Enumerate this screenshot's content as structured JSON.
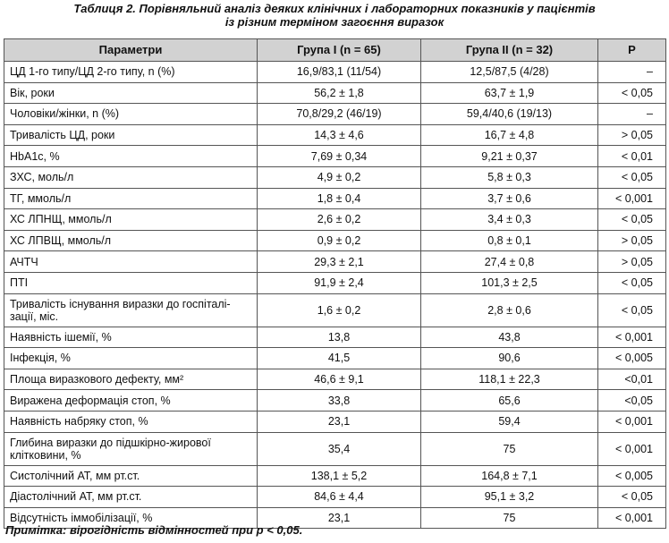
{
  "caption": {
    "line1": "Таблиця 2. Порівняльний аналіз деяких клінічних і лабораторних показників у пацієнтів",
    "line2": "із різним терміном загоєння виразок"
  },
  "table": {
    "headers": [
      "Параметри",
      "Група І (n = 65)",
      "Група ІІ (n = 32)",
      "Р"
    ],
    "rows": [
      {
        "param": "ЦД 1-го типу/ЦД 2-го типу, n (%)",
        "g1": "16,9/83,1 (11/54)",
        "g2": "12,5/87,5 (4/28)",
        "p": "–"
      },
      {
        "param": "Вік, роки",
        "g1": "56,2 ± 1,8",
        "g2": "63,7 ± 1,9",
        "p": "< 0,05"
      },
      {
        "param": "Чоловіки/жінки, n (%)",
        "g1": "70,8/29,2 (46/19)",
        "g2": "59,4/40,6 (19/13)",
        "p": "–"
      },
      {
        "param": "Тривалість ЦД, роки",
        "g1": "14,3 ± 4,6",
        "g2": "16,7 ± 4,8",
        "p": "> 0,05"
      },
      {
        "param": "HbA1c,  %",
        "g1": "7,69 ± 0,34",
        "g2": "9,21 ± 0,37",
        "p": "< 0,01"
      },
      {
        "param": "ЗХС, моль/л",
        "g1": "4,9 ± 0,2",
        "g2": "5,8 ± 0,3",
        "p": "< 0,05"
      },
      {
        "param": "ТГ, ммоль/л",
        "g1": "1,8 ± 0,4",
        "g2": "3,7 ± 0,6",
        "p": "< 0,001"
      },
      {
        "param": "ХС ЛПНЩ, ммоль/л",
        "g1": "2,6 ± 0,2",
        "g2": "3,4 ± 0,3",
        "p": "< 0,05"
      },
      {
        "param": "ХС ЛПВЩ, ммоль/л",
        "g1": "0,9 ± 0,2",
        "g2": "0,8 ± 0,1",
        "p": "> 0,05"
      },
      {
        "param": "АЧТЧ",
        "g1": "29,3 ± 2,1",
        "g2": "27,4 ± 0,8",
        "p": "> 0,05"
      },
      {
        "param": "ПТІ",
        "g1": "91,9 ± 2,4",
        "g2": "101,3 ± 2,5",
        "p": "< 0,05"
      },
      {
        "param": "Тривалість існування виразки до госпіталі-зації, міс.",
        "g1": "1,6 ± 0,2",
        "g2": "2,8 ± 0,6",
        "p": "< 0,05",
        "tall": true
      },
      {
        "param": "Наявність ішемії, %",
        "g1": "13,8",
        "g2": "43,8",
        "p": "< 0,001"
      },
      {
        "param": "Інфекція, %",
        "g1": "41,5",
        "g2": "90,6",
        "p": "< 0,005"
      },
      {
        "param": "Площа виразкового дефекту, мм²",
        "g1": "46,6 ± 9,1",
        "g2": "118,1 ± 22,3",
        "p": "<0,01"
      },
      {
        "param": "Виражена деформація стоп, %",
        "g1": "33,8",
        "g2": "65,6",
        "p": "<0,05"
      },
      {
        "param": "Наявність набряку стоп, %",
        "g1": "23,1",
        "g2": "59,4",
        "p": "< 0,001"
      },
      {
        "param": "Глибина виразки до підшкірно-жирової клітковини, %",
        "g1": "35,4",
        "g2": "75",
        "p": "< 0,001",
        "tall": true
      },
      {
        "param": "Систолічний АТ, мм рт.ст.",
        "g1": "138,1 ± 5,2",
        "g2": "164,8 ± 7,1",
        "p": "< 0,005"
      },
      {
        "param": "Діастолічний АТ, мм рт.ст.",
        "g1": "84,6 ± 4,4",
        "g2": "95,1 ± 3,2",
        "p": "< 0,05"
      },
      {
        "param": "Відсутність іммобілізації, %",
        "g1": "23,1",
        "g2": "75",
        "p": "< 0,001"
      }
    ]
  },
  "note": "Примітка: вірогідність відмінностей при р < 0,05."
}
